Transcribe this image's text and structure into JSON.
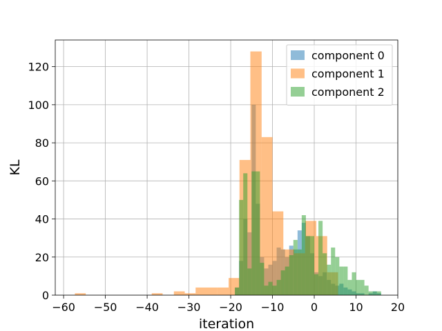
{
  "chart_data": {
    "type": "bar",
    "title": "",
    "xlabel": "iteration",
    "ylabel": "KL",
    "xlim": [
      -62,
      20
    ],
    "ylim": [
      0,
      134
    ],
    "grid": true,
    "legend_position": "top-right",
    "x_ticks": [
      -60,
      -50,
      -40,
      -30,
      -20,
      -10,
      0,
      10,
      20
    ],
    "x_tick_labels": [
      "−60",
      "−50",
      "−40",
      "−30",
      "−20",
      "−10",
      "0",
      "10",
      "20"
    ],
    "y_ticks": [
      0,
      20,
      40,
      60,
      80,
      100,
      120
    ],
    "y_tick_labels": [
      "0",
      "20",
      "40",
      "60",
      "80",
      "100",
      "120"
    ],
    "series": [
      {
        "name": "component 0",
        "color": "#1f77b4",
        "bins": [
          {
            "x0": -19.0,
            "x1": -18.0,
            "y": 4
          },
          {
            "x0": -18.0,
            "x1": -17.0,
            "y": 18
          },
          {
            "x0": -17.0,
            "x1": -16.0,
            "y": 40
          },
          {
            "x0": -16.0,
            "x1": -15.0,
            "y": 33
          },
          {
            "x0": -15.0,
            "x1": -14.0,
            "y": 100
          },
          {
            "x0": -14.0,
            "x1": -13.0,
            "y": 48
          },
          {
            "x0": -13.0,
            "x1": -12.0,
            "y": 20
          },
          {
            "x0": -12.0,
            "x1": -11.0,
            "y": 14
          },
          {
            "x0": -11.0,
            "x1": -10.0,
            "y": 16
          },
          {
            "x0": -10.0,
            "x1": -9.0,
            "y": 18
          },
          {
            "x0": -9.0,
            "x1": -8.0,
            "y": 25
          },
          {
            "x0": -8.0,
            "x1": -7.0,
            "y": 24
          },
          {
            "x0": -7.0,
            "x1": -6.0,
            "y": 20
          },
          {
            "x0": -6.0,
            "x1": -5.0,
            "y": 26
          },
          {
            "x0": -5.0,
            "x1": -4.0,
            "y": 24
          },
          {
            "x0": -4.0,
            "x1": -3.0,
            "y": 34
          },
          {
            "x0": -3.0,
            "x1": -2.0,
            "y": 38
          },
          {
            "x0": -2.0,
            "x1": -1.0,
            "y": 31
          },
          {
            "x0": -1.0,
            "x1": 0.0,
            "y": 22
          },
          {
            "x0": 0.0,
            "x1": 1.0,
            "y": 12
          },
          {
            "x0": 1.0,
            "x1": 2.0,
            "y": 10
          },
          {
            "x0": 2.0,
            "x1": 3.0,
            "y": 12
          },
          {
            "x0": 3.0,
            "x1": 4.0,
            "y": 8
          },
          {
            "x0": 4.0,
            "x1": 5.0,
            "y": 6
          },
          {
            "x0": 5.0,
            "x1": 6.0,
            "y": 5
          },
          {
            "x0": 6.0,
            "x1": 7.0,
            "y": 6
          },
          {
            "x0": 7.0,
            "x1": 8.0,
            "y": 4
          },
          {
            "x0": 8.0,
            "x1": 9.0,
            "y": 3
          },
          {
            "x0": 9.0,
            "x1": 10.0,
            "y": 2
          },
          {
            "x0": 10.0,
            "x1": 11.0,
            "y": 1
          },
          {
            "x0": 11.0,
            "x1": 12.0,
            "y": 1
          },
          {
            "x0": 13.0,
            "x1": 14.0,
            "y": 1
          },
          {
            "x0": 14.0,
            "x1": 15.0,
            "y": 2
          },
          {
            "x0": 15.0,
            "x1": 16.0,
            "y": 1
          }
        ]
      },
      {
        "name": "component 1",
        "color": "#ff7f0e",
        "bins": [
          {
            "x0": -57.3,
            "x1": -54.7,
            "y": 1
          },
          {
            "x0": -38.9,
            "x1": -36.3,
            "y": 1
          },
          {
            "x0": -33.6,
            "x1": -31.0,
            "y": 2
          },
          {
            "x0": -31.0,
            "x1": -28.4,
            "y": 1
          },
          {
            "x0": -28.4,
            "x1": -25.8,
            "y": 4
          },
          {
            "x0": -25.8,
            "x1": -23.2,
            "y": 4
          },
          {
            "x0": -23.2,
            "x1": -20.5,
            "y": 4
          },
          {
            "x0": -20.5,
            "x1": -17.9,
            "y": 9
          },
          {
            "x0": -17.9,
            "x1": -15.3,
            "y": 71
          },
          {
            "x0": -15.3,
            "x1": -12.6,
            "y": 128
          },
          {
            "x0": -12.6,
            "x1": -10.0,
            "y": 83
          },
          {
            "x0": -10.0,
            "x1": -7.4,
            "y": 44
          },
          {
            "x0": -7.4,
            "x1": -4.8,
            "y": 24
          },
          {
            "x0": -4.8,
            "x1": -2.2,
            "y": 22
          },
          {
            "x0": -2.2,
            "x1": 0.5,
            "y": 39
          },
          {
            "x0": 0.5,
            "x1": 3.1,
            "y": 31
          },
          {
            "x0": 3.1,
            "x1": 5.7,
            "y": 12
          }
        ]
      },
      {
        "name": "component 2",
        "color": "#2ca02c",
        "bins": [
          {
            "x0": -19.0,
            "x1": -18.0,
            "y": 4
          },
          {
            "x0": -18.0,
            "x1": -17.0,
            "y": 50
          },
          {
            "x0": -17.0,
            "x1": -16.0,
            "y": 64
          },
          {
            "x0": -16.0,
            "x1": -15.0,
            "y": 14
          },
          {
            "x0": -15.0,
            "x1": -14.0,
            "y": 65
          },
          {
            "x0": -14.0,
            "x1": -13.0,
            "y": 65
          },
          {
            "x0": -13.0,
            "x1": -12.0,
            "y": 17
          },
          {
            "x0": -12.0,
            "x1": -11.0,
            "y": 5
          },
          {
            "x0": -11.0,
            "x1": -10.0,
            "y": 7
          },
          {
            "x0": -10.0,
            "x1": -9.0,
            "y": 5
          },
          {
            "x0": -9.0,
            "x1": -8.0,
            "y": 8
          },
          {
            "x0": -8.0,
            "x1": -7.0,
            "y": 13
          },
          {
            "x0": -7.0,
            "x1": -6.0,
            "y": 15
          },
          {
            "x0": -6.0,
            "x1": -5.0,
            "y": 21
          },
          {
            "x0": -5.0,
            "x1": -4.0,
            "y": 29
          },
          {
            "x0": -4.0,
            "x1": -3.0,
            "y": 24
          },
          {
            "x0": -3.0,
            "x1": -2.0,
            "y": 42
          },
          {
            "x0": -2.0,
            "x1": -1.0,
            "y": 31
          },
          {
            "x0": -1.0,
            "x1": 0.0,
            "y": 31
          },
          {
            "x0": 0.0,
            "x1": 1.0,
            "y": 11
          },
          {
            "x0": 1.0,
            "x1": 2.0,
            "y": 39
          },
          {
            "x0": 2.0,
            "x1": 3.0,
            "y": 22
          },
          {
            "x0": 3.0,
            "x1": 4.0,
            "y": 16
          },
          {
            "x0": 4.0,
            "x1": 5.0,
            "y": 25
          },
          {
            "x0": 5.0,
            "x1": 6.0,
            "y": 20
          },
          {
            "x0": 6.0,
            "x1": 7.0,
            "y": 15
          },
          {
            "x0": 7.0,
            "x1": 8.0,
            "y": 15
          },
          {
            "x0": 8.0,
            "x1": 9.0,
            "y": 8
          },
          {
            "x0": 9.0,
            "x1": 10.0,
            "y": 12
          },
          {
            "x0": 10.0,
            "x1": 11.0,
            "y": 8
          },
          {
            "x0": 11.0,
            "x1": 12.0,
            "y": 8
          },
          {
            "x0": 12.0,
            "x1": 13.0,
            "y": 5
          },
          {
            "x0": 13.0,
            "x1": 14.0,
            "y": 2
          },
          {
            "x0": 14.0,
            "x1": 15.0,
            "y": 2
          },
          {
            "x0": 15.0,
            "x1": 16.0,
            "y": 2
          }
        ]
      }
    ]
  }
}
